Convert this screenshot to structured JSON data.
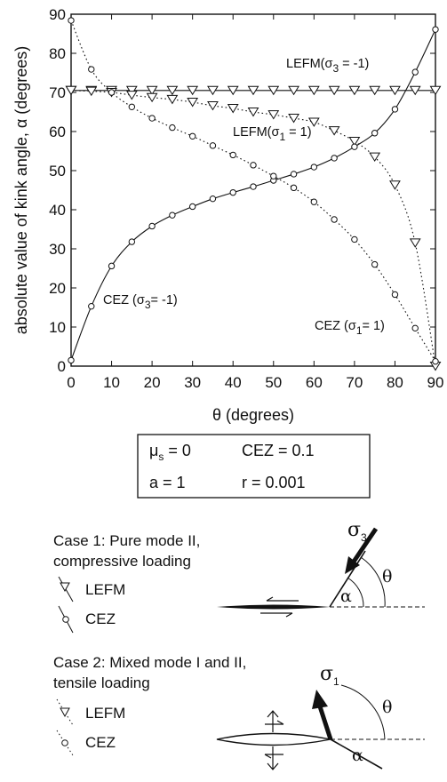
{
  "chart_data": {
    "type": "line",
    "xlabel": "θ (degrees)",
    "ylabel": "absolute value of kink angle, α (degrees)",
    "xlim": [
      0,
      90
    ],
    "ylim": [
      0,
      90
    ],
    "xticks": [
      0,
      10,
      20,
      30,
      40,
      50,
      60,
      70,
      80,
      90
    ],
    "yticks": [
      0,
      10,
      20,
      30,
      40,
      50,
      60,
      70,
      80,
      90
    ],
    "grid": false,
    "series": [
      {
        "name": "LEFM(σ3 = -1)",
        "marker": "triangle-down",
        "line": "solid",
        "x": [
          0,
          5,
          10,
          15,
          20,
          25,
          30,
          35,
          40,
          45,
          50,
          55,
          60,
          65,
          70,
          75,
          80,
          85,
          90
        ],
        "y": [
          70.5,
          70.5,
          70.5,
          70.5,
          70.5,
          70.5,
          70.5,
          70.5,
          70.5,
          70.5,
          70.5,
          70.5,
          70.5,
          70.5,
          70.5,
          70.5,
          70.5,
          70.5,
          70.5
        ]
      },
      {
        "name": "LEFM(σ1 = 1)",
        "marker": "triangle-down",
        "line": "dotted",
        "x": [
          0,
          5,
          10,
          15,
          20,
          25,
          30,
          35,
          40,
          45,
          50,
          55,
          60,
          65,
          70,
          75,
          80,
          85,
          90
        ],
        "y": [
          70.5,
          70.3,
          70.0,
          69.3,
          68.7,
          68.2,
          67.5,
          66.6,
          65.9,
          65.0,
          64.3,
          63.4,
          62.4,
          60.2,
          57.5,
          53.5,
          46.3,
          31.5,
          0
        ]
      },
      {
        "name": "CEZ (σ3= -1)",
        "marker": "circle",
        "line": "solid",
        "x": [
          0,
          5,
          10,
          15,
          20,
          25,
          30,
          35,
          40,
          45,
          50,
          55,
          60,
          65,
          70,
          75,
          80,
          85,
          90
        ],
        "y": [
          1.5,
          15.3,
          25.6,
          31.8,
          35.8,
          38.6,
          40.8,
          42.8,
          44.4,
          45.9,
          47.5,
          49.1,
          50.9,
          53.2,
          56.1,
          59.6,
          65.7,
          75.2,
          86.1
        ]
      },
      {
        "name": "CEZ (σ1= 1)",
        "marker": "circle",
        "line": "dotted",
        "x": [
          0,
          5,
          10,
          15,
          20,
          25,
          30,
          35,
          40,
          45,
          50,
          55,
          60,
          65,
          70,
          75,
          80,
          85,
          90
        ],
        "y": [
          88.4,
          75.9,
          70.0,
          66.3,
          63.4,
          61.0,
          58.8,
          56.4,
          54.0,
          51.4,
          48.6,
          45.6,
          42.0,
          37.5,
          32.4,
          26.0,
          18.3,
          9.7,
          1.2
        ]
      }
    ],
    "annotations": {
      "lefm_comp": {
        "t1": "LEFM(σ",
        "sub": "3",
        "t2": " = -1)"
      },
      "lefm_tens": {
        "t1": "LEFM(σ",
        "sub": "1",
        "t2": " = 1)"
      },
      "cez_comp": {
        "t1": "CEZ (σ",
        "sub": "3",
        "t2": "= -1)"
      },
      "cez_tens": {
        "t1": "CEZ (σ",
        "sub": "1",
        "t2": "= 1)"
      }
    },
    "parameters": {
      "mu": {
        "t1": "μ",
        "sub": "s",
        "t2": " = 0"
      },
      "cez": "CEZ = 0.1",
      "a": "a = 1",
      "r": "r = 0.001"
    }
  },
  "legend": {
    "case1": {
      "line1": "Case 1: Pure mode II,",
      "line2": "compressive loading",
      "lefm": "LEFM",
      "cez": "CEZ"
    },
    "case2": {
      "line1": "Case 2: Mixed mode I and II,",
      "line2": "tensile loading",
      "lefm": "LEFM",
      "cez": "CEZ"
    }
  },
  "diagram": {
    "sigma3": {
      "base": "σ",
      "sub": "3"
    },
    "sigma1": {
      "base": "σ",
      "sub": "1"
    },
    "alpha": "α",
    "theta": "θ"
  }
}
